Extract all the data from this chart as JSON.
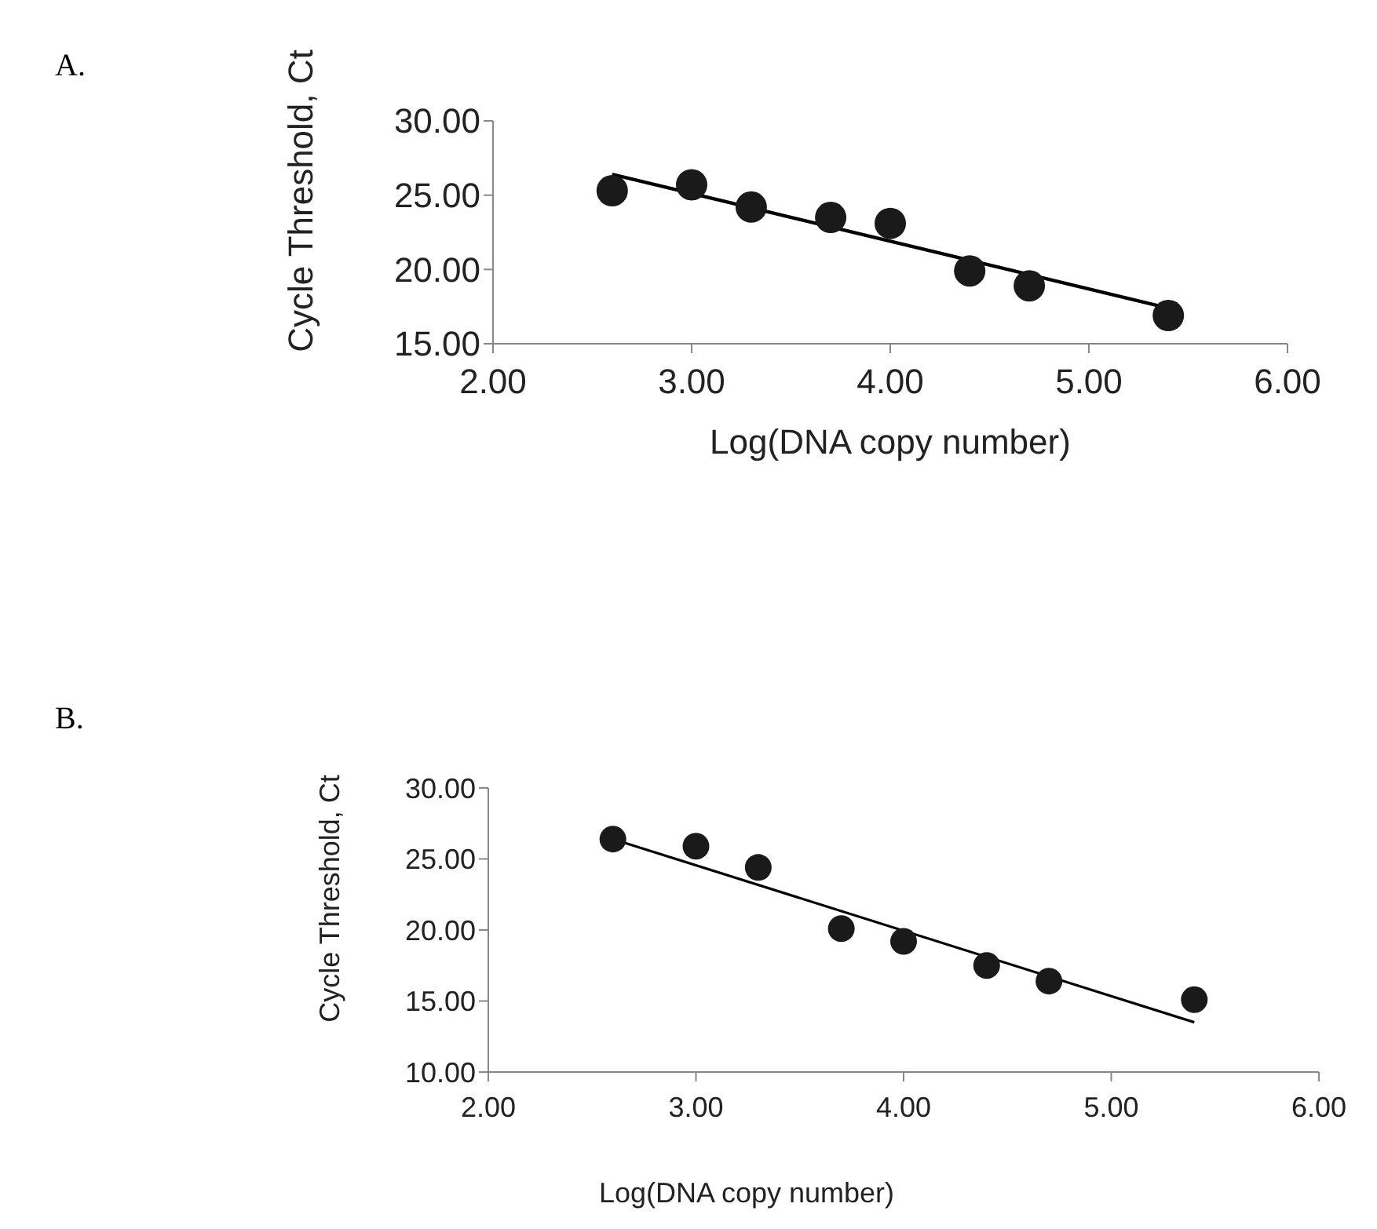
{
  "chart_data": [
    {
      "type": "scatter",
      "annotations": [
        "A."
      ],
      "xlabel": "Log(DNA copy number)",
      "ylabel": "Cycle Threshold, Ct",
      "xlim": [
        2,
        6
      ],
      "xticks": [
        {
          "value": 2,
          "label": "2.00"
        },
        {
          "value": 3,
          "label": "3.00"
        },
        {
          "value": 4,
          "label": "4.00"
        },
        {
          "value": 5,
          "label": "5.00"
        },
        {
          "value": 6,
          "label": "6.00"
        }
      ],
      "ylim": [
        15,
        30
      ],
      "yticks": [
        {
          "value": 15,
          "label": "15.00"
        },
        {
          "value": 20,
          "label": "20.00"
        },
        {
          "value": 25,
          "label": "25.00"
        },
        {
          "value": 30,
          "label": "30.00"
        }
      ],
      "grid": false,
      "series": [
        {
          "marker": "circle",
          "color": "#1a1a1a",
          "x": [
            2.6,
            3.0,
            3.3,
            3.7,
            4.0,
            4.4,
            4.7,
            5.4
          ],
          "values": [
            25.3,
            25.7,
            24.2,
            23.5,
            23.1,
            19.9,
            18.9,
            16.9
          ]
        },
        {
          "type": "line",
          "marker": "none",
          "color": "#000000",
          "x": [
            2.6,
            5.4
          ],
          "values": [
            26.4,
            17.4
          ]
        }
      ]
    },
    {
      "type": "scatter",
      "annotations": [
        "B."
      ],
      "xlabel": "Log(DNA copy number)",
      "ylabel": "Cycle Threshold, Ct",
      "xlim": [
        2,
        6
      ],
      "xticks": [
        {
          "value": 2,
          "label": "2.00"
        },
        {
          "value": 3,
          "label": "3.00"
        },
        {
          "value": 4,
          "label": "4.00"
        },
        {
          "value": 5,
          "label": "5.00"
        },
        {
          "value": 6,
          "label": "6.00"
        }
      ],
      "ylim": [
        10,
        30
      ],
      "yticks": [
        {
          "value": 10,
          "label": "10.00"
        },
        {
          "value": 15,
          "label": "15.00"
        },
        {
          "value": 20,
          "label": "20.00"
        },
        {
          "value": 25,
          "label": "25.00"
        },
        {
          "value": 30,
          "label": "30.00"
        }
      ],
      "grid": false,
      "series": [
        {
          "marker": "circle",
          "color": "#1a1a1a",
          "x": [
            2.6,
            3.0,
            3.3,
            3.7,
            4.0,
            4.4,
            4.7,
            5.4
          ],
          "values": [
            26.4,
            25.9,
            24.4,
            20.1,
            19.2,
            17.5,
            16.4,
            15.1
          ]
        },
        {
          "type": "line",
          "marker": "none",
          "color": "#000000",
          "x": [
            2.6,
            5.4
          ],
          "values": [
            26.4,
            13.5
          ]
        }
      ]
    }
  ]
}
